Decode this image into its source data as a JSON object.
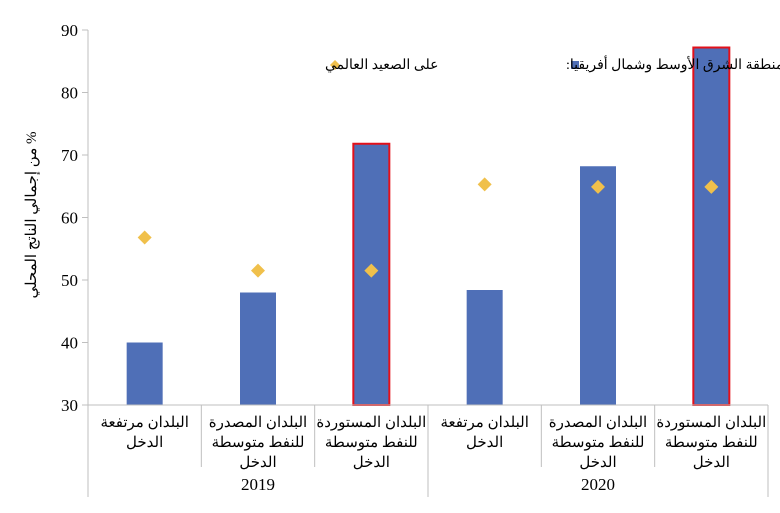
{
  "chart_data": {
    "type": "bar",
    "ylabel": "% من إجمالي الناتج المحلي",
    "ylim": [
      30,
      90
    ],
    "yticks": [
      30,
      40,
      50,
      60,
      70,
      80,
      90
    ],
    "groups": [
      {
        "year": "2019",
        "categories": [
          {
            "label": [
              "البلدان مرتفعة",
              "الدخل"
            ],
            "mena": 40.0,
            "world": 56.8,
            "highlight": false
          },
          {
            "label": [
              "البلدان المصدرة",
              "للنفط متوسطة",
              "الدخل"
            ],
            "mena": 48.0,
            "world": 51.5,
            "highlight": false
          },
          {
            "label": [
              "البلدان المستوردة",
              "للنفط متوسطة",
              "الدخل"
            ],
            "mena": 71.8,
            "world": 51.5,
            "highlight": true
          }
        ]
      },
      {
        "year": "2020",
        "categories": [
          {
            "label": [
              "البلدان مرتفعة",
              "الدخل"
            ],
            "mena": 48.4,
            "world": 65.3,
            "highlight": false
          },
          {
            "label": [
              "البلدان المصدرة",
              "للنفط متوسطة",
              "الدخل"
            ],
            "mena": 68.2,
            "world": 64.9,
            "highlight": false
          },
          {
            "label": [
              "البلدان المستوردة",
              "للنفط متوسطة",
              "الدخل"
            ],
            "mena": 87.2,
            "world": 64.9,
            "highlight": true
          }
        ]
      }
    ],
    "legend": {
      "mena": "منطقة الشرق الأوسط وشمال أفريقيا:",
      "world": "على الصعيد العالمي"
    },
    "colors": {
      "bar": "#4f6fb7",
      "highlight_border": "#e3101a",
      "marker": "#f0c04b",
      "axis": "#bfbfbf"
    }
  }
}
